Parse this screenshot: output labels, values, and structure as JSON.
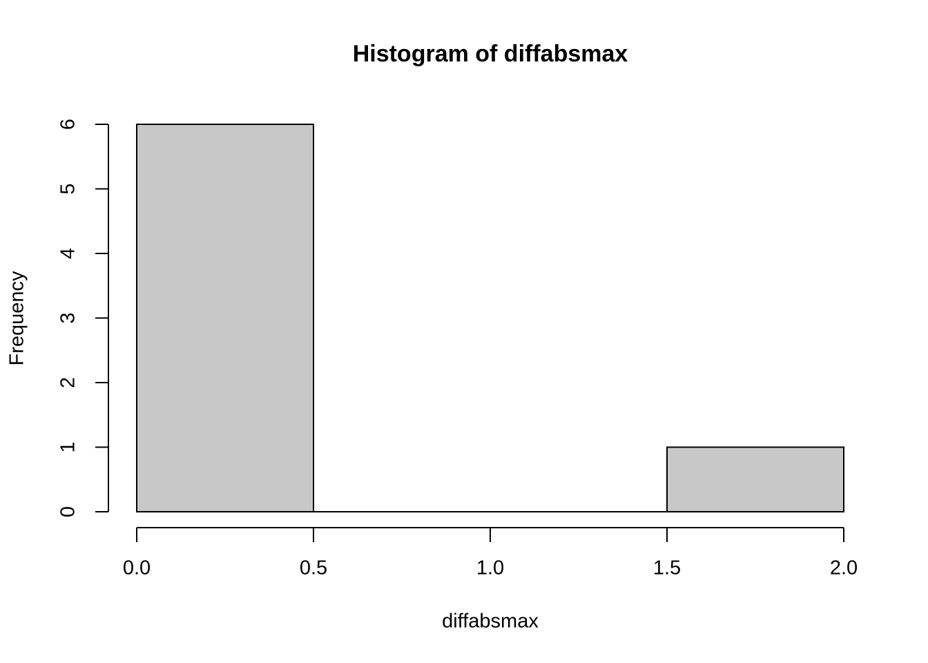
{
  "chart_data": {
    "type": "histogram",
    "title": "Histogram of diffabsmax",
    "x_label": "diffabsmax",
    "y_label": "Frequency",
    "bins": [
      0,
      0.5,
      1,
      1.5,
      2
    ],
    "values": [
      6,
      0,
      0,
      1
    ],
    "color": "#c8c8c8",
    "xlim": [
      0,
      2
    ],
    "ylim": [
      0,
      6
    ],
    "xticks": [
      {
        "value": 0,
        "label": "0.0"
      },
      0.5,
      {
        "value": 1,
        "label": "1.0"
      },
      1.5,
      {
        "value": 2,
        "label": "2.0"
      }
    ],
    "yticks": [
      0,
      1,
      2,
      3,
      4,
      5,
      6
    ]
  }
}
